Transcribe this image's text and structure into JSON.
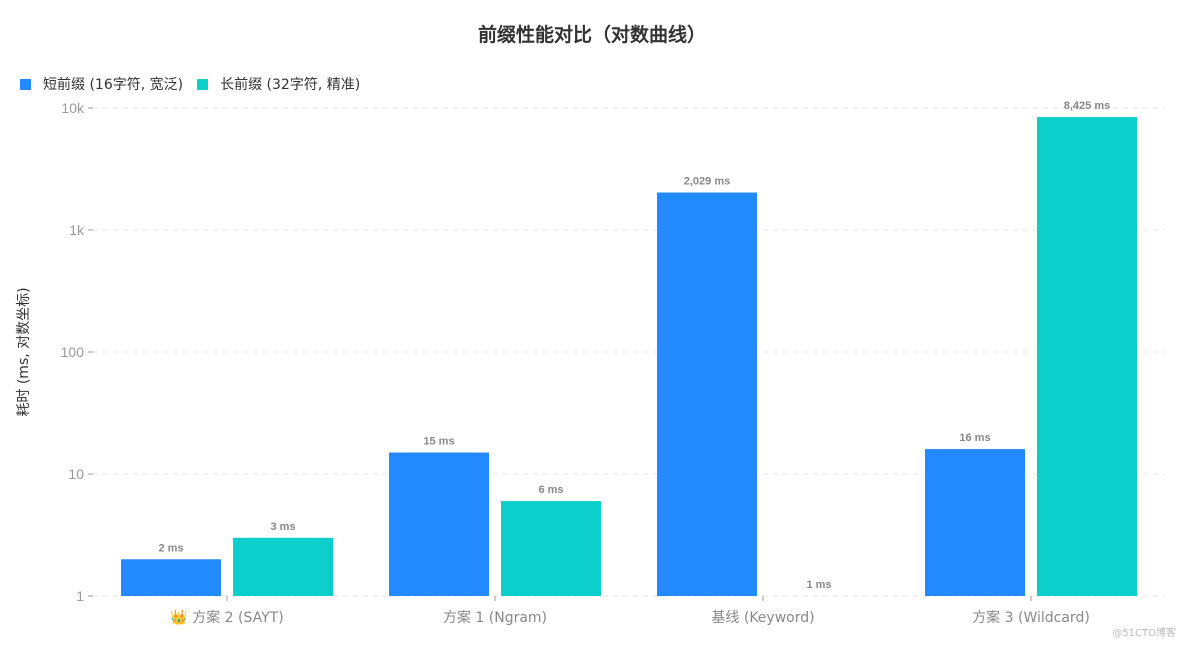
{
  "chart_data": {
    "type": "bar",
    "title": "前缀性能对比（对数曲线）",
    "xlabel": "",
    "ylabel": "耗时 (ms, 对数坐标)",
    "yscale": "log",
    "ylim": [
      1,
      10000
    ],
    "yticks": [
      1,
      10,
      100,
      1000,
      10000
    ],
    "ytick_labels": [
      "1",
      "10",
      "100",
      "1k",
      "10k"
    ],
    "categories": [
      "👑 方案 2 (SAYT)",
      "方案 1 (Ngram)",
      "基线 (Keyword)",
      "方案 3 (Wildcard)"
    ],
    "series": [
      {
        "name": "短前缀 (16字符, 宽泛)",
        "color": "#2389FF",
        "values": [
          2,
          15,
          2029,
          16
        ],
        "labels": [
          "2 ms",
          "15 ms",
          "2,029 ms",
          "16 ms"
        ]
      },
      {
        "name": "长前缀 (32字符, 精准)",
        "color": "#0CCECB",
        "values": [
          3,
          6,
          1,
          8425
        ],
        "labels": [
          "3 ms",
          "6 ms",
          "1 ms",
          "8,425 ms"
        ]
      }
    ],
    "grid": true,
    "legend_position": "top-left"
  },
  "watermark": "@51CTO博客"
}
